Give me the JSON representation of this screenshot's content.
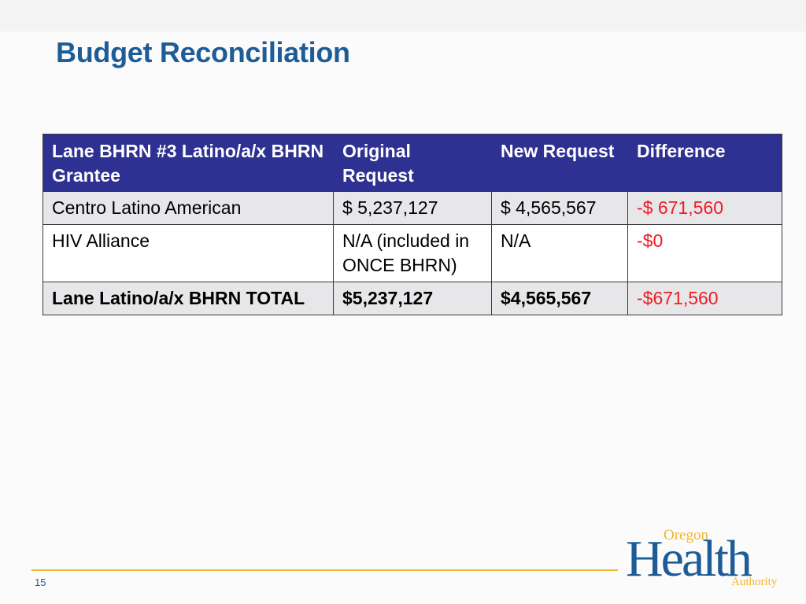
{
  "slide": {
    "title": "Budget Reconciliation",
    "page_number": "15"
  },
  "table": {
    "headers": [
      "Lane BHRN #3 Latino/a/x BHRN Grantee",
      "Original Request",
      "New Request",
      "Difference"
    ],
    "rows": [
      [
        "Centro Latino American",
        "$ 5,237,127",
        "$ 4,565,567",
        "-$ 671,560"
      ],
      [
        "HIV Alliance",
        "N/A (included in ONCE BHRN)",
        "N/A",
        "-$0"
      ],
      [
        "Lane Latino/a/x BHRN TOTAL",
        "$5,237,127",
        "$4,565,567",
        "-$671,560"
      ]
    ]
  },
  "logo": {
    "top": "Oregon",
    "main": "Health",
    "bottom": "Authority"
  },
  "colors": {
    "title": "#1d5c96",
    "header_bg": "#2e3192",
    "negative": "#ee1c23",
    "footer_line": "#f2b632"
  }
}
